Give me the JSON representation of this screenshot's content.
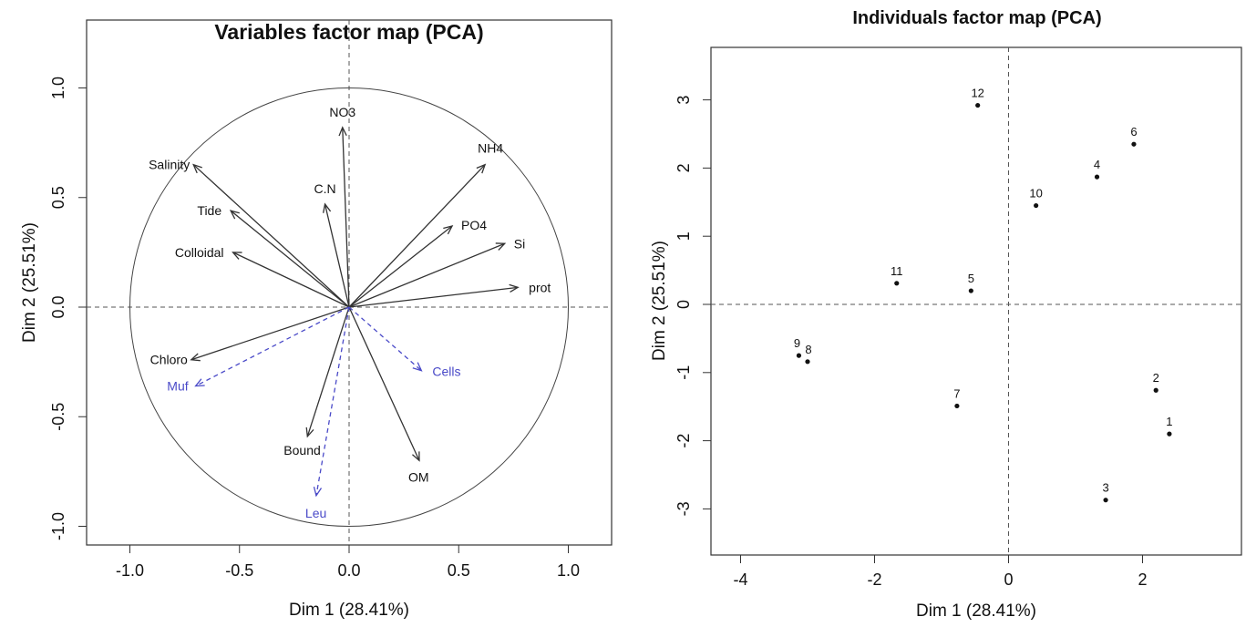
{
  "chart_data": [
    {
      "type": "scatter",
      "subtype": "pca-variables-correlation-circle",
      "title": "Variables factor map (PCA)",
      "xlabel": "Dim 1 (28.41%)",
      "ylabel": "Dim 2 (25.51%)",
      "xlim": [
        -1.2,
        1.2
      ],
      "ylim": [
        -1.1,
        1.1
      ],
      "xticks": [
        "-1.0",
        "-0.5",
        "0.0",
        "0.5",
        "1.0"
      ],
      "yticks": [
        "-1.0",
        "-0.5",
        "0.0",
        "0.5",
        "1.0"
      ],
      "colors": {
        "active": "#333333",
        "supplementary": "#4a4ac8"
      },
      "active_variables": [
        {
          "name": "NO3",
          "x": -0.03,
          "y": 0.82
        },
        {
          "name": "C.N",
          "x": -0.11,
          "y": 0.47
        },
        {
          "name": "Salinity",
          "x": -0.71,
          "y": 0.65
        },
        {
          "name": "Tide",
          "x": -0.54,
          "y": 0.44
        },
        {
          "name": "Colloidal",
          "x": -0.53,
          "y": 0.25
        },
        {
          "name": "NH4",
          "x": 0.62,
          "y": 0.65
        },
        {
          "name": "PO4",
          "x": 0.47,
          "y": 0.37
        },
        {
          "name": "Si",
          "x": 0.71,
          "y": 0.29
        },
        {
          "name": "prot",
          "x": 0.77,
          "y": 0.09
        },
        {
          "name": "Chloro",
          "x": -0.72,
          "y": -0.24
        },
        {
          "name": "Bound",
          "x": -0.19,
          "y": -0.59
        },
        {
          "name": "OM",
          "x": 0.32,
          "y": -0.7
        }
      ],
      "supplementary_variables": [
        {
          "name": "Muf",
          "x": -0.7,
          "y": -0.36
        },
        {
          "name": "Cells",
          "x": 0.33,
          "y": -0.29
        },
        {
          "name": "Leu",
          "x": -0.15,
          "y": -0.86
        }
      ]
    },
    {
      "type": "scatter",
      "subtype": "pca-individuals",
      "title": "Individuals factor map (PCA)",
      "xlabel": "Dim 1 (28.41%)",
      "ylabel": "Dim 2 (25.51%)",
      "xlim": [
        -4.3,
        3.1
      ],
      "ylim": [
        -3.7,
        4.1
      ],
      "xticks": [
        "-4",
        "-2",
        "0",
        "2"
      ],
      "yticks": [
        "-3",
        "-2",
        "-1",
        "0",
        "1",
        "2",
        "3"
      ],
      "points": [
        {
          "label": "1",
          "x": 2.4,
          "y": -1.9
        },
        {
          "label": "2",
          "x": 2.2,
          "y": -1.26
        },
        {
          "label": "3",
          "x": 1.45,
          "y": -2.87
        },
        {
          "label": "4",
          "x": 1.32,
          "y": 1.87
        },
        {
          "label": "5",
          "x": -0.56,
          "y": 0.2
        },
        {
          "label": "6",
          "x": 1.87,
          "y": 2.35
        },
        {
          "label": "7",
          "x": -0.77,
          "y": -1.49
        },
        {
          "label": "8",
          "x": -3.0,
          "y": -0.84
        },
        {
          "label": "9",
          "x": -3.13,
          "y": -0.75
        },
        {
          "label": "10",
          "x": 0.41,
          "y": 1.45
        },
        {
          "label": "11",
          "x": -1.67,
          "y": 0.31
        },
        {
          "label": "12",
          "x": -0.46,
          "y": 2.92
        }
      ]
    }
  ]
}
